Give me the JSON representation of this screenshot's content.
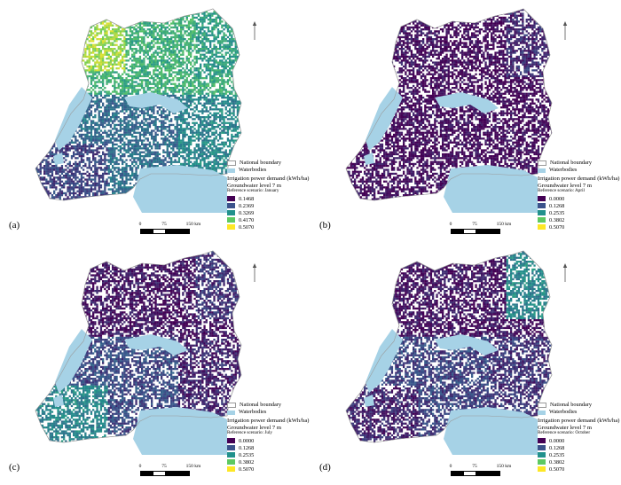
{
  "legend_common": {
    "boundary_label": "National boundary",
    "water_label": "Waterbodies",
    "title": "Irrigation power demand (kWh/ha)",
    "subtitle": "Groundwater level 7 m"
  },
  "scalebar": {
    "ticks": [
      "0",
      "75",
      "150 km"
    ]
  },
  "colors": {
    "water": "#a6d2e6",
    "boundary": "#9a9a9a",
    "viridis": [
      "#440154",
      "#3b528b",
      "#21918c",
      "#5ec962",
      "#fde725"
    ]
  },
  "panels": [
    {
      "label": "(a)",
      "scenario": "Reference scenario: January",
      "classes": [
        "0.1468",
        "0.2369",
        "0.3269",
        "0.4170",
        "0.5070"
      ],
      "regional_level": {
        "north": 0.62,
        "northwest": 0.85,
        "northeast": 0.55,
        "center": 0.35,
        "southwest": 0.2,
        "east": 0.45
      }
    },
    {
      "label": "(b)",
      "scenario": "Reference scenario: April",
      "classes": [
        "0.0000",
        "0.1268",
        "0.2535",
        "0.3802",
        "0.5070"
      ],
      "regional_level": {
        "north": 0.02,
        "northwest": 0.05,
        "northeast": 0.12,
        "center": 0.02,
        "southwest": 0.03,
        "east": 0.02
      }
    },
    {
      "label": "(c)",
      "scenario": "Reference scenario: July",
      "classes": [
        "0.0000",
        "0.1268",
        "0.2535",
        "0.3802",
        "0.5070"
      ],
      "regional_level": {
        "north": 0.05,
        "northwest": 0.05,
        "northeast": 0.15,
        "center": 0.22,
        "southwest": 0.45,
        "east": 0.1
      }
    },
    {
      "label": "(d)",
      "scenario": "Reference scenario: October",
      "classes": [
        "0.0000",
        "0.1268",
        "0.2535",
        "0.3802",
        "0.5070"
      ],
      "regional_level": {
        "north": 0.05,
        "northwest": 0.05,
        "northeast": 0.45,
        "center": 0.2,
        "southwest": 0.1,
        "east": 0.15
      }
    }
  ]
}
